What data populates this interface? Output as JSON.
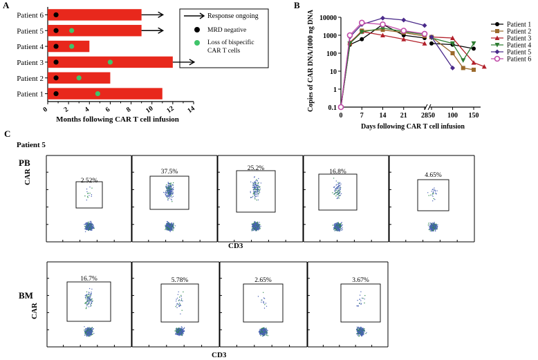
{
  "chart_data": [
    {
      "type": "bar",
      "panel": "A",
      "title": "",
      "xlabel": "Months following CAR T cell infusion",
      "ylabel": "",
      "xlim": [
        0,
        14
      ],
      "xticks": [
        "0",
        "2",
        "4",
        "6",
        "8",
        "10",
        "12",
        "14"
      ],
      "categories": [
        "Patient 6",
        "Patient 5",
        "Patient 4",
        "Patient 3",
        "Patient 2",
        "Patient 1"
      ],
      "values": [
        9.0,
        9.0,
        4.0,
        12.0,
        6.0,
        11.0
      ],
      "response_ongoing": [
        true,
        true,
        false,
        true,
        false,
        false
      ],
      "mrd_negative": [
        0.8,
        0.8,
        0.8,
        0.8,
        0.8,
        0.8
      ],
      "loss_bispecific": [
        null,
        2.3,
        2.3,
        6.0,
        3.0,
        4.8
      ],
      "bar_color": "#e8281c",
      "mrd_color": "#000000",
      "loss_color": "#3fc46a",
      "legend": {
        "response": "Response ongoing",
        "mrd": "MRD negative",
        "loss_line1": "Loss of bispecific",
        "loss_line2": "CAR T cells"
      }
    },
    {
      "type": "line",
      "panel": "B",
      "ylabel": "Copies of CAR DNA/1000 ng DNA",
      "xlabel": "Days following CAR T cell infusion",
      "yscale": "log",
      "ylim": [
        0.1,
        10000
      ],
      "yticks": [
        "0.1",
        "1",
        "10",
        "100",
        "1000",
        "10000"
      ],
      "xticks": [
        "0",
        "7",
        "14",
        "21",
        "28",
        "50",
        "100",
        "150"
      ],
      "series": [
        {
          "name": "Patient 1",
          "color": "#000000",
          "marker": "circle",
          "seg1": [
            [
              0,
              0.1
            ],
            [
              3,
              300
            ],
            [
              7,
              600
            ],
            [
              14,
              4000
            ],
            [
              21,
              1000
            ],
            [
              28,
              700
            ]
          ],
          "seg2": [
            [
              50,
              350
            ],
            [
              100,
              300
            ],
            [
              150,
              180
            ]
          ]
        },
        {
          "name": "Patient 2",
          "color": "#9b6a2c",
          "marker": "square",
          "seg1": [
            [
              0,
              0.1
            ],
            [
              3,
              350
            ],
            [
              7,
              1800
            ],
            [
              14,
              2000
            ],
            [
              21,
              1400
            ],
            [
              28,
              900
            ]
          ],
          "seg2": [
            [
              50,
              800
            ],
            [
              100,
              100
            ],
            [
              125,
              15
            ],
            [
              150,
              12
            ]
          ]
        },
        {
          "name": "Patient 3",
          "color": "#b2202a",
          "marker": "triangle-up",
          "seg1": [
            [
              0,
              0.1
            ],
            [
              3,
              400
            ],
            [
              7,
              1600
            ],
            [
              14,
              1000
            ],
            [
              21,
              600
            ],
            [
              28,
              350
            ]
          ],
          "seg2": [
            [
              50,
              800
            ],
            [
              100,
              700
            ],
            [
              150,
              30
            ],
            [
              175,
              18
            ]
          ]
        },
        {
          "name": "Patient 4",
          "color": "#2e7d32",
          "marker": "triangle-down",
          "seg1": [
            [
              0,
              0.1
            ],
            [
              3,
              350
            ],
            [
              7,
              1500
            ],
            [
              14,
              2500
            ],
            [
              21,
              1600
            ],
            [
              28,
              1100
            ]
          ],
          "seg2": [
            [
              50,
              700
            ],
            [
              100,
              350
            ],
            [
              125,
              40
            ],
            [
              150,
              350
            ]
          ]
        },
        {
          "name": "Patient 5",
          "color": "#4a2a8a",
          "marker": "diamond",
          "seg1": [
            [
              0,
              0.1
            ],
            [
              3,
              800
            ],
            [
              7,
              4000
            ],
            [
              14,
              9000
            ],
            [
              21,
              7000
            ],
            [
              28,
              3500
            ]
          ],
          "seg2": [
            [
              50,
              800
            ],
            [
              100,
              15
            ]
          ]
        },
        {
          "name": "Patient 6",
          "color": "#c04aa8",
          "marker": "circle-open",
          "seg1": [
            [
              0,
              0.1
            ],
            [
              3,
              1000
            ],
            [
              7,
              5000
            ],
            [
              14,
              4000
            ],
            [
              21,
              1800
            ],
            [
              28,
              1200
            ]
          ],
          "seg2": []
        }
      ]
    },
    {
      "type": "scatter",
      "panel": "C",
      "subtitle": "Patient 5",
      "rows": [
        {
          "label": "PB",
          "ylabel": "CAR",
          "xlabel": "CD3",
          "plots": [
            "2.52%",
            "37.5%",
            "25.2%",
            "16.8%",
            "4.65%"
          ]
        },
        {
          "label": "BM",
          "ylabel": "CAR",
          "xlabel": "CD3",
          "plots": [
            "16.7%",
            "5.78%",
            "2.65%",
            "3.67%"
          ]
        }
      ]
    }
  ],
  "panel_labels": {
    "a": "A",
    "b": "B",
    "c": "C"
  }
}
